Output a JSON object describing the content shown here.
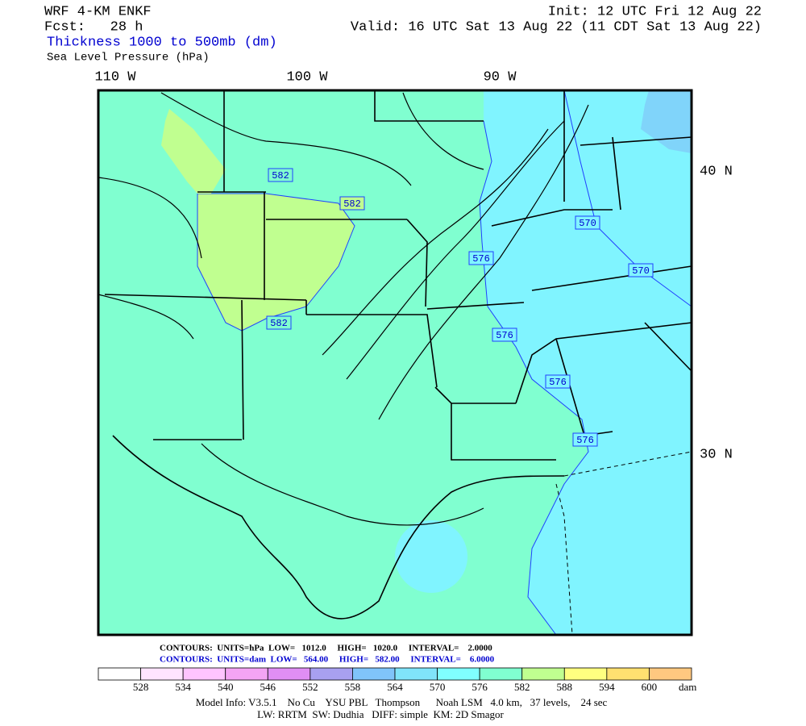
{
  "header": {
    "model": "WRF 4-KM ENKF",
    "forecast": "Fcst:   28 h",
    "init": "Init: 12 UTC Fri 12 Aug 22",
    "valid": "Valid: 16 UTC Sat 13 Aug 22 (11 CDT Sat 13 Aug 22)",
    "field_1": "Thickness 1000 to 500mb (dm)",
    "field_2": "Sea Level Pressure (hPa)"
  },
  "map": {
    "longitude_labels": [
      "110 W",
      "100 W",
      "90 W"
    ],
    "latitude_labels": [
      "40 N",
      "30 N"
    ],
    "contour_labels": [
      "582",
      "582",
      "582",
      "576",
      "576",
      "576",
      "576",
      "570",
      "570"
    ]
  },
  "contour_info": [
    "CONTOURS:  UNITS=hPa  LOW=   1012.0     HIGH=   1020.0     INTERVAL=    2.0000",
    "CONTOURS:  UNITS=dam  LOW=   564.00     HIGH=   582.00     INTERVAL=    6.0000"
  ],
  "colorbar": {
    "labels": [
      "528",
      "534",
      "540",
      "546",
      "552",
      "558",
      "564",
      "570",
      "576",
      "582",
      "588",
      "594",
      "600"
    ],
    "unit": "dam",
    "colors": [
      "#ffffff",
      "#ffe4ff",
      "#ffc4ff",
      "#f4a4f4",
      "#e08ef4",
      "#a8a0f0",
      "#80c4fa",
      "#80e4fa",
      "#80ffff",
      "#80ffd0",
      "#c0ff90",
      "#ffff80",
      "#ffe070",
      "#ffc880"
    ]
  },
  "footer": [
    "Model Info: V3.5.1    No Cu    YSU PBL   Thompson      Noah LSM   4.0 km,   37 levels,    24 sec",
    "LW: RRTM  SW: Dudhia   DIFF: simple  KM: 2D Smagor"
  ]
}
